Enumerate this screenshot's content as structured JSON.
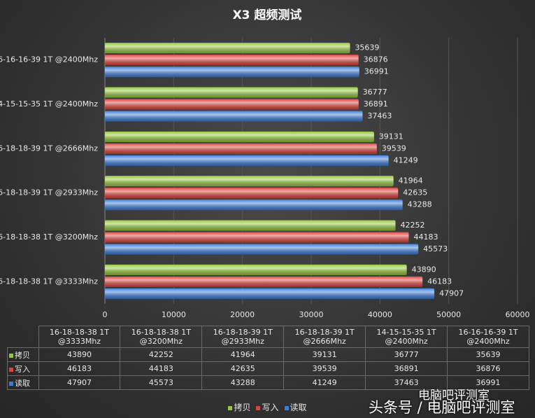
{
  "chart_data": {
    "type": "bar",
    "orientation": "horizontal",
    "title": "X3 超频测试",
    "categories": [
      "16-18-18-38 1T @3333Mhz",
      "16-18-18-38 1T @3200Mhz",
      "16-18-18-39 1T @2933Mhz",
      "16-18-18-39 1T @2666Mhz",
      "14-15-15-35 1T @2400Mhz",
      "16-16-16-39 1T @2400Mhz"
    ],
    "series": [
      {
        "name": "拷贝",
        "color": "#94c83a",
        "values": [
          43890,
          42252,
          41964,
          39131,
          36777,
          35639
        ]
      },
      {
        "name": "写入",
        "color": "#e0423c",
        "values": [
          46183,
          44183,
          42635,
          39539,
          36891,
          36876
        ]
      },
      {
        "name": "读取",
        "color": "#3a7ddc",
        "values": [
          47907,
          45573,
          43288,
          41249,
          37463,
          36991
        ]
      }
    ],
    "xlim": [
      0,
      60000
    ],
    "xticks": [
      0,
      10000,
      20000,
      30000,
      40000,
      50000,
      60000
    ],
    "grid": true,
    "data_labels": true,
    "legend": "bottom",
    "data_table": true
  },
  "watermark": {
    "account": "电脑吧评测室",
    "source": "头条号 / 电脑吧评测室"
  }
}
